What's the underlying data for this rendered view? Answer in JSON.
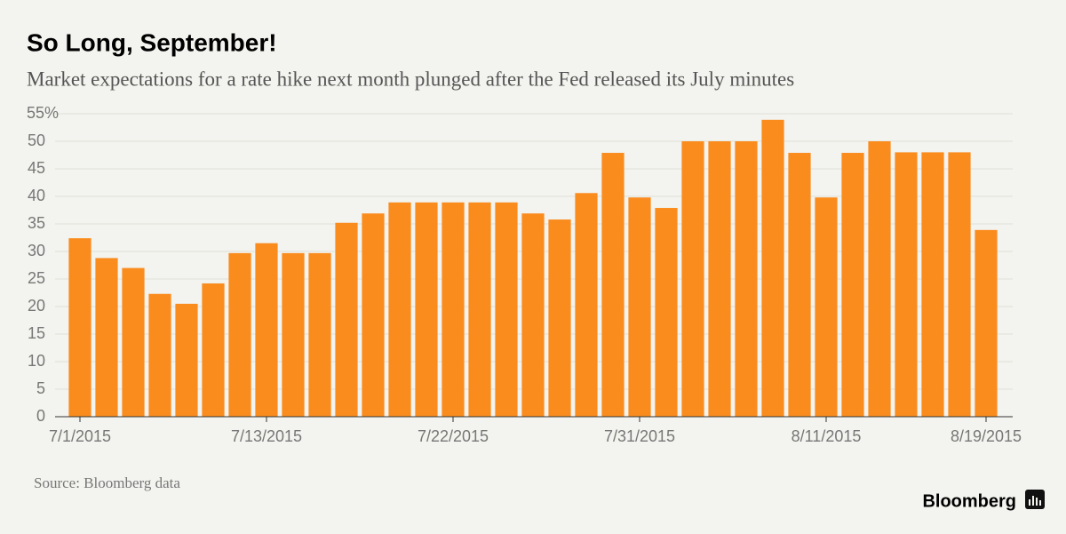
{
  "title": "So Long, September!",
  "subtitle": "Market expectations for a rate hike next month plunged after the Fed released its July minutes",
  "source": "Source: Bloomberg data",
  "brand": "Bloomberg",
  "chart_data": {
    "type": "bar",
    "categories": [
      "7/1/2015",
      null,
      null,
      null,
      null,
      null,
      null,
      "7/13/2015",
      null,
      null,
      null,
      null,
      null,
      null,
      "7/22/2015",
      null,
      null,
      null,
      null,
      null,
      null,
      "7/31/2015",
      null,
      null,
      null,
      null,
      null,
      null,
      "8/11/2015",
      null,
      null,
      null,
      null,
      null,
      "8/19/2015"
    ],
    "values": [
      32.4,
      28.8,
      27,
      22.3,
      20.5,
      24.2,
      29.7,
      31.5,
      29.7,
      29.7,
      35.2,
      36.9,
      38.9,
      38.9,
      38.9,
      38.9,
      38.9,
      36.9,
      35.8,
      40.6,
      47.9,
      39.8,
      37.9,
      50,
      50,
      50,
      53.9,
      47.9,
      39.8,
      47.9,
      50,
      48,
      48,
      48,
      33.9
    ],
    "color": "#fa8c1e",
    "ylim": [
      0,
      55
    ],
    "yticks": [
      0,
      5,
      10,
      15,
      20,
      25,
      30,
      35,
      40,
      45,
      50,
      {
        "value": 55,
        "label": "55%"
      }
    ],
    "grid": true
  }
}
